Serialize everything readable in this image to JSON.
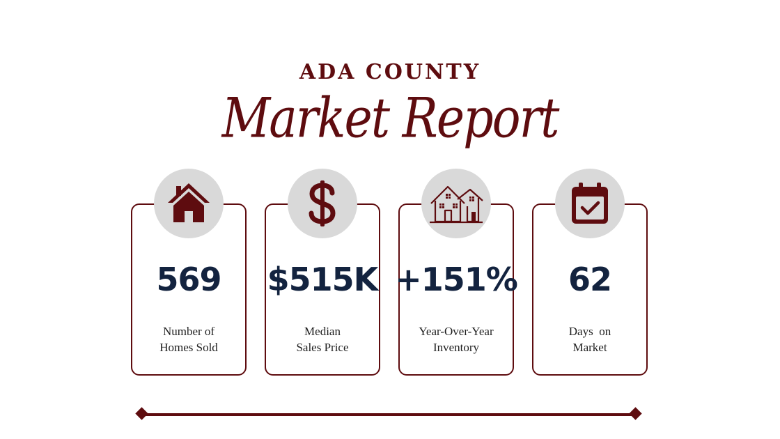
{
  "header": {
    "county": "ADA COUNTY",
    "subtitle": "Market Report"
  },
  "stats": [
    {
      "icon": "house-icon",
      "value": "569",
      "label_line1": "Number of",
      "label_line2": "Homes Sold"
    },
    {
      "icon": "dollar-sign-icon",
      "value": "$515K",
      "label_line1": "Median",
      "label_line2": "Sales Price"
    },
    {
      "icon": "houses-icon",
      "value": "+151%",
      "label_line1": "Year-Over-Year",
      "label_line2": "Inventory"
    },
    {
      "icon": "calendar-check-icon",
      "value": "62",
      "label_line1": "Days  on",
      "label_line2": "Market"
    }
  ],
  "colors": {
    "accent": "#5e0c0f",
    "value_text": "#13233f",
    "icon_circle": "#d9d9d9"
  }
}
